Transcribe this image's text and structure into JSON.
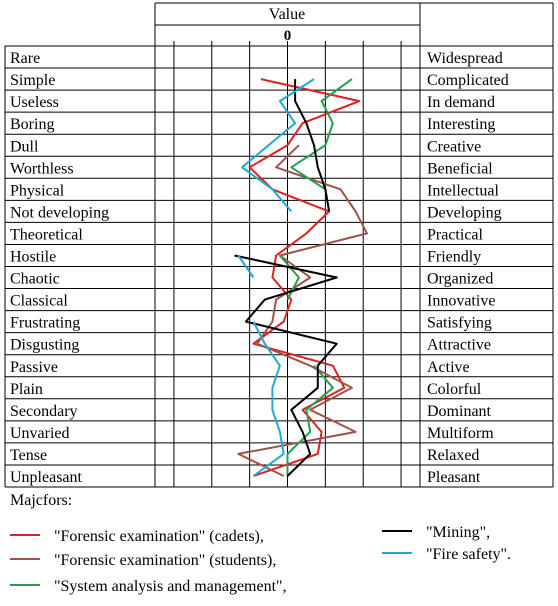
{
  "chart_data": {
    "type": "line",
    "title": "",
    "header": "Value",
    "zero_label": "0",
    "rows": [
      {
        "left": "Rare",
        "right": "Widespread"
      },
      {
        "left": "Simple",
        "right": "Complicated"
      },
      {
        "left": "Useless",
        "right": "In demand"
      },
      {
        "left": "Boring",
        "right": "Interesting"
      },
      {
        "left": "Dull",
        "right": "Creative"
      },
      {
        "left": "Worthless",
        "right": "Beneficial"
      },
      {
        "left": "Physical",
        "right": "Intellectual"
      },
      {
        "left": "Not developing",
        "right": "Developing"
      },
      {
        "left": "Theoretical",
        "right": "Practical"
      },
      {
        "left": "Hostile",
        "right": "Friendly"
      },
      {
        "left": "Chaotic",
        "right": "Organized"
      },
      {
        "left": "Classical",
        "right": "Innovative"
      },
      {
        "left": "Frustrating",
        "right": "Satisfying"
      },
      {
        "left": "Disgusting",
        "right": "Attractive"
      },
      {
        "left": "Passive",
        "right": "Active"
      },
      {
        "left": "Plain",
        "right": "Colorful"
      },
      {
        "left": "Secondary",
        "right": "Dominant"
      },
      {
        "left": "Unvaried",
        "right": "Multiform"
      },
      {
        "left": "Tense",
        "right": "Relaxed"
      },
      {
        "left": "Unpleasant",
        "right": "Pleasant"
      }
    ],
    "x_range": [
      -3.5,
      3.5
    ],
    "legend_title": "Majcfors:",
    "series": [
      {
        "name": "\"Forensic examination\" (cadets),",
        "color": "#e02020",
        "values": [
          null,
          -0.7,
          1.9,
          0.4,
          0.0,
          -1.0,
          -0.4,
          1.1,
          0.5,
          -0.3,
          -0.4,
          0.1,
          -0.1,
          -0.9,
          1.2,
          1.5,
          0.4,
          0.9,
          0.8,
          -0.9
        ]
      },
      {
        "name": "\"Forensic examination\" (students),",
        "color": "#a0524a",
        "values": [
          null,
          null,
          null,
          null,
          0.3,
          -0.3,
          1.4,
          1.8,
          2.1,
          -0.2,
          0.6,
          -0.3,
          -0.4,
          -0.8,
          0.6,
          1.7,
          0.6,
          1.8,
          -1.3,
          -0.1
        ]
      },
      {
        "name": "\"System analysis and management\",",
        "color": "#22a050",
        "values": [
          null,
          1.7,
          0.9,
          1.2,
          1.0,
          0.1,
          1.0,
          null,
          null,
          -0.2,
          0.3,
          0.0,
          null,
          null,
          0.7,
          1.2,
          0.5,
          0.6,
          0.0,
          0.0
        ]
      },
      {
        "name": "\"Mining\",",
        "color": "#000000",
        "values": [
          null,
          0.2,
          0.2,
          0.5,
          0.7,
          0.8,
          1.0,
          1.1,
          null,
          -1.4,
          1.3,
          -0.6,
          -1.1,
          1.3,
          0.8,
          0.8,
          0.1,
          0.4,
          0.6,
          0.0
        ]
      },
      {
        "name": "\"Fire safety\".",
        "color": "#20a8d8",
        "values": [
          null,
          0.7,
          -0.2,
          0.2,
          -0.5,
          -1.2,
          -0.4,
          0.1,
          null,
          -1.3,
          -0.9,
          null,
          -0.9,
          -0.6,
          -0.2,
          -0.4,
          -0.4,
          -0.2,
          -0.1,
          -0.9
        ]
      }
    ]
  }
}
